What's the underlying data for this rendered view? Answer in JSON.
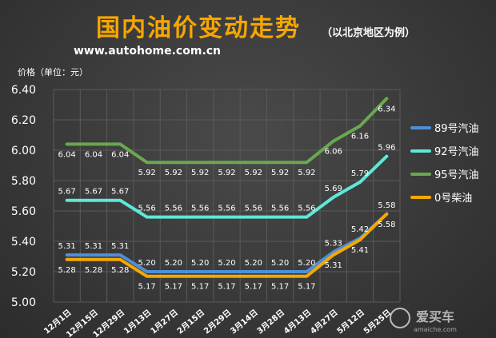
{
  "title": "国内油价变动走势",
  "subtitle": "（以北京地区为例）",
  "site": "www.autohome.com.cn",
  "watermark": {
    "brand": "爱买车",
    "url": "amaiche.com"
  },
  "colors": {
    "background": "#3a3a3a",
    "title": "#f7a600",
    "grid": "#5a5a5a",
    "text": "#ffffff",
    "series_89": "#4f8fd8",
    "series_92": "#5ee8d8",
    "series_95": "#6aa84f",
    "series_0": "#f5a800"
  },
  "chart_data": {
    "type": "line",
    "ylabel": "价格（单位：元）",
    "xlabel": "",
    "ylim": [
      5.0,
      6.4
    ],
    "yticks": [
      "5.00",
      "5.20",
      "5.40",
      "5.60",
      "5.80",
      "6.00",
      "6.20",
      "6.40"
    ],
    "grid": true,
    "legend_position": "right",
    "categories": [
      "12月1日",
      "12月15日",
      "12月29日",
      "1月13日",
      "1月27日",
      "2月15日",
      "2月29日",
      "3月14日",
      "3月28日",
      "4月13日",
      "4月27日",
      "5月12日",
      "5月25日"
    ],
    "series": [
      {
        "name": "89号汽油",
        "color": "#4f8fd8",
        "label_side": "above",
        "values": [
          5.31,
          5.31,
          5.31,
          5.2,
          5.2,
          5.2,
          5.2,
          5.2,
          5.2,
          5.2,
          5.33,
          5.42,
          5.58
        ]
      },
      {
        "name": "92号汽油",
        "color": "#5ee8d8",
        "label_side": "above",
        "values": [
          5.67,
          5.67,
          5.67,
          5.56,
          5.56,
          5.56,
          5.56,
          5.56,
          5.56,
          5.56,
          5.69,
          5.79,
          5.96
        ]
      },
      {
        "name": "95号汽油",
        "color": "#6aa84f",
        "label_side": "below",
        "values": [
          6.04,
          6.04,
          6.04,
          5.92,
          5.92,
          5.92,
          5.92,
          5.92,
          5.92,
          5.92,
          6.06,
          6.16,
          6.34
        ]
      },
      {
        "name": "0号柴油",
        "color": "#f5a800",
        "label_side": "below",
        "values": [
          5.28,
          5.28,
          5.28,
          5.17,
          5.17,
          5.17,
          5.17,
          5.17,
          5.17,
          5.17,
          5.31,
          5.41,
          5.58
        ]
      }
    ]
  }
}
